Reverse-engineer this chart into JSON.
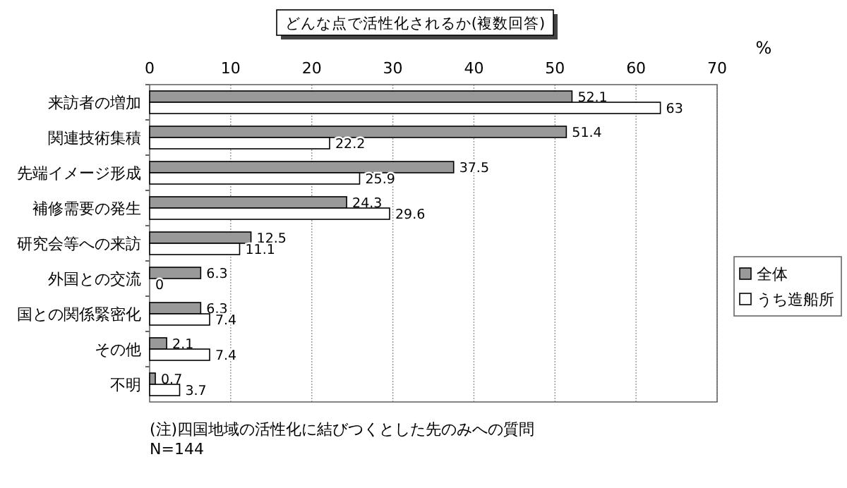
{
  "chart_data": {
    "type": "bar",
    "orientation": "horizontal",
    "title": "どんな点で活性化されるか(複数回答)",
    "xlabel": "%",
    "categories": [
      "来訪者の増加",
      "関連技術集積",
      "先端イメージ形成",
      "補修需要の発生",
      "研究会等への来訪",
      "外国との交流",
      "国との関係緊密化",
      "その他",
      "不明"
    ],
    "series": [
      {
        "name": "全体",
        "color": "#999999",
        "values": [
          52.1,
          51.4,
          37.5,
          24.3,
          12.5,
          6.3,
          6.3,
          2.1,
          0.7
        ]
      },
      {
        "name": "うち造船所",
        "color": "#ffffff",
        "values": [
          63,
          22.2,
          25.9,
          29.6,
          11.1,
          0,
          7.4,
          7.4,
          3.7
        ]
      }
    ],
    "xlim": [
      0,
      70
    ],
    "xticks": [
      0,
      10,
      20,
      30,
      40,
      50,
      60,
      70
    ],
    "grid": "x",
    "legend": "right",
    "data_labels": true,
    "annotations": [
      "(注)四国地域の活性化に結びつくとした先のみへの質問",
      "N=144"
    ]
  }
}
